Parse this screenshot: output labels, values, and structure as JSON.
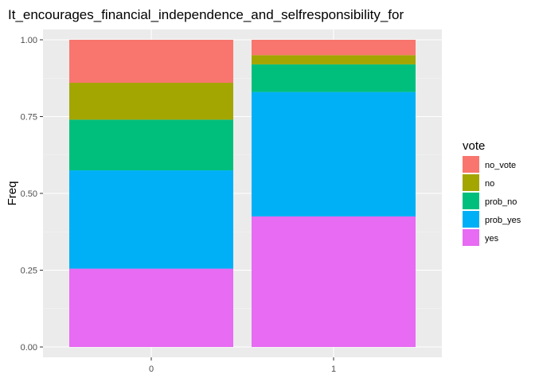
{
  "chart_data": {
    "type": "bar",
    "stacked": true,
    "title": "It_encourages_financial_independence_and_selfresponsibility_for",
    "xlabel": "",
    "ylabel": "Freq",
    "categories": [
      "0",
      "1"
    ],
    "ylim": [
      0,
      1
    ],
    "yticks": [
      "0.00",
      "0.25",
      "0.50",
      "0.75",
      "1.00"
    ],
    "ytick_values": [
      0,
      0.25,
      0.5,
      0.75,
      1.0
    ],
    "legend_title": "vote",
    "legend_position": "right",
    "grid": true,
    "series": [
      {
        "name": "no_vote",
        "color": "#F8766D",
        "values": [
          0.14,
          0.05
        ]
      },
      {
        "name": "no",
        "color": "#A3A500",
        "values": [
          0.12,
          0.03
        ]
      },
      {
        "name": "prob_no",
        "color": "#00BF7D",
        "values": [
          0.165,
          0.09
        ]
      },
      {
        "name": "prob_yes",
        "color": "#00B0F6",
        "values": [
          0.32,
          0.405
        ]
      },
      {
        "name": "yes",
        "color": "#E76BF3",
        "values": [
          0.255,
          0.425
        ]
      }
    ],
    "stack_order_bottom_to_top": [
      "yes",
      "prob_yes",
      "prob_no",
      "no",
      "no_vote"
    ]
  }
}
